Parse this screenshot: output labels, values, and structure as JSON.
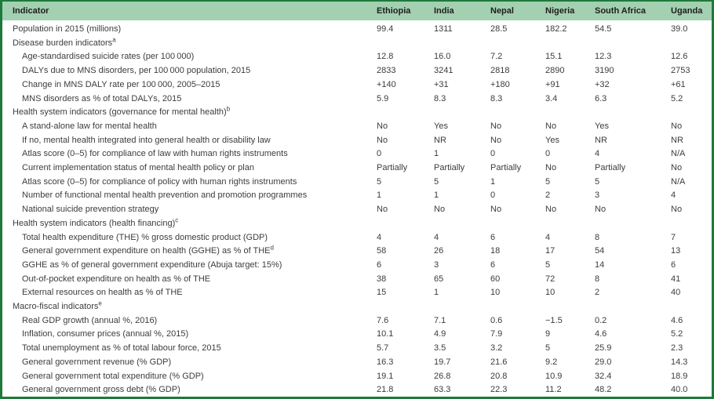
{
  "colors": {
    "border": "#1e7a3a",
    "header_bg": "#a3d0b1",
    "text": "#3c3c3c"
  },
  "table": {
    "header": [
      "Indicator",
      "Ethiopia",
      "India",
      "Nepal",
      "Nigeria",
      "South Africa",
      "Uganda"
    ],
    "rows": [
      {
        "label": "Population in 2015 (millions)",
        "indent": false,
        "values": [
          "99.4",
          "1311",
          "28.5",
          "182.2",
          "54.5",
          "39.0"
        ]
      },
      {
        "label": "Disease burden indicators",
        "sup": "a",
        "indent": false,
        "values": []
      },
      {
        "label": "Age-standardised suicide rates (per 100 000)",
        "indent": true,
        "values": [
          "12.8",
          "16.0",
          "7.2",
          "15.1",
          "12.3",
          "12.6"
        ]
      },
      {
        "label": "DALYs due to MNS disorders, per 100 000 population, 2015",
        "indent": true,
        "values": [
          "2833",
          "3241",
          "2818",
          "2890",
          "3190",
          "2753"
        ]
      },
      {
        "label": "Change in MNS DALY rate per 100 000, 2005–2015",
        "indent": true,
        "values": [
          "+140",
          "+31",
          "+180",
          "+91",
          "+32",
          "+61"
        ]
      },
      {
        "label": "MNS disorders as % of total DALYs, 2015",
        "indent": true,
        "values": [
          "5.9",
          "8.3",
          "8.3",
          "3.4",
          "6.3",
          "5.2"
        ]
      },
      {
        "label": "Health system indicators (governance for mental health)",
        "sup": "b",
        "indent": false,
        "values": []
      },
      {
        "label": "A stand-alone law for mental health",
        "indent": true,
        "values": [
          "No",
          "Yes",
          "No",
          "No",
          "Yes",
          "No"
        ]
      },
      {
        "label": "If no, mental health integrated into general health or disability law",
        "indent": true,
        "values": [
          "No",
          "NR",
          "No",
          "Yes",
          "NR",
          "NR"
        ]
      },
      {
        "label": "Atlas score (0–5) for compliance of law with human rights instruments",
        "indent": true,
        "values": [
          "0",
          "1",
          "0",
          "0",
          "4",
          "N/A"
        ]
      },
      {
        "label": "Current implementation status of mental health policy or plan",
        "indent": true,
        "values": [
          "Partially",
          "Partially",
          "Partially",
          "No",
          "Partially",
          "No"
        ]
      },
      {
        "label": "Atlas score (0–5) for compliance of policy with human rights instruments",
        "indent": true,
        "values": [
          "5",
          "5",
          "1",
          "5",
          "5",
          "N/A"
        ]
      },
      {
        "label": "Number of functional mental health prevention and promotion programmes",
        "indent": true,
        "values": [
          "1",
          "1",
          "0",
          "2",
          "3",
          "4"
        ]
      },
      {
        "label": "National suicide prevention strategy",
        "indent": true,
        "values": [
          "No",
          "No",
          "No",
          "No",
          "No",
          "No"
        ]
      },
      {
        "label": "Health system indicators (health financing)",
        "sup": "c",
        "indent": false,
        "values": []
      },
      {
        "label": "Total health expenditure (THE) % gross domestic product (GDP)",
        "indent": true,
        "values": [
          "4",
          "4",
          "6",
          "4",
          "8",
          "7"
        ]
      },
      {
        "label": "General government expenditure on health (GGHE) as % of THE",
        "sup": "d",
        "indent": true,
        "values": [
          "58",
          "26",
          "18",
          "17",
          "54",
          "13"
        ]
      },
      {
        "label": "GGHE as % of general government expenditure (Abuja target: 15%)",
        "indent": true,
        "values": [
          "6",
          "3",
          "6",
          "5",
          "14",
          "6"
        ]
      },
      {
        "label": "Out-of-pocket expenditure on health as % of THE",
        "indent": true,
        "values": [
          "38",
          "65",
          "60",
          "72",
          "8",
          "41"
        ]
      },
      {
        "label": "External resources on health as % of THE",
        "indent": true,
        "values": [
          "15",
          "1",
          "10",
          "10",
          "2",
          "40"
        ]
      },
      {
        "label": "Macro-fiscal indicators",
        "sup": "e",
        "indent": false,
        "values": []
      },
      {
        "label": "Real GDP growth (annual %, 2016)",
        "indent": true,
        "values": [
          "7.6",
          "7.1",
          "0.6",
          "−1.5",
          "0.2",
          "4.6"
        ]
      },
      {
        "label": "Inflation, consumer prices (annual %, 2015)",
        "indent": true,
        "values": [
          "10.1",
          "4.9",
          "7.9",
          "9",
          "4.6",
          "5.2"
        ]
      },
      {
        "label": "Total unemployment as % of total labour force, 2015",
        "indent": true,
        "values": [
          "5.7",
          "3.5",
          "3.2",
          "5",
          "25.9",
          "2.3"
        ]
      },
      {
        "label": "General government revenue (% GDP)",
        "indent": true,
        "values": [
          "16.3",
          "19.7",
          "21.6",
          "9.2",
          "29.0",
          "14.3"
        ]
      },
      {
        "label": "General government total expenditure (% GDP)",
        "indent": true,
        "values": [
          "19.1",
          "26.8",
          "20.8",
          "10.9",
          "32.4",
          "18.9"
        ]
      },
      {
        "label": "General government gross debt (% GDP)",
        "indent": true,
        "values": [
          "21.8",
          "63.3",
          "22.3",
          "11.2",
          "48.2",
          "40.0"
        ]
      }
    ]
  }
}
